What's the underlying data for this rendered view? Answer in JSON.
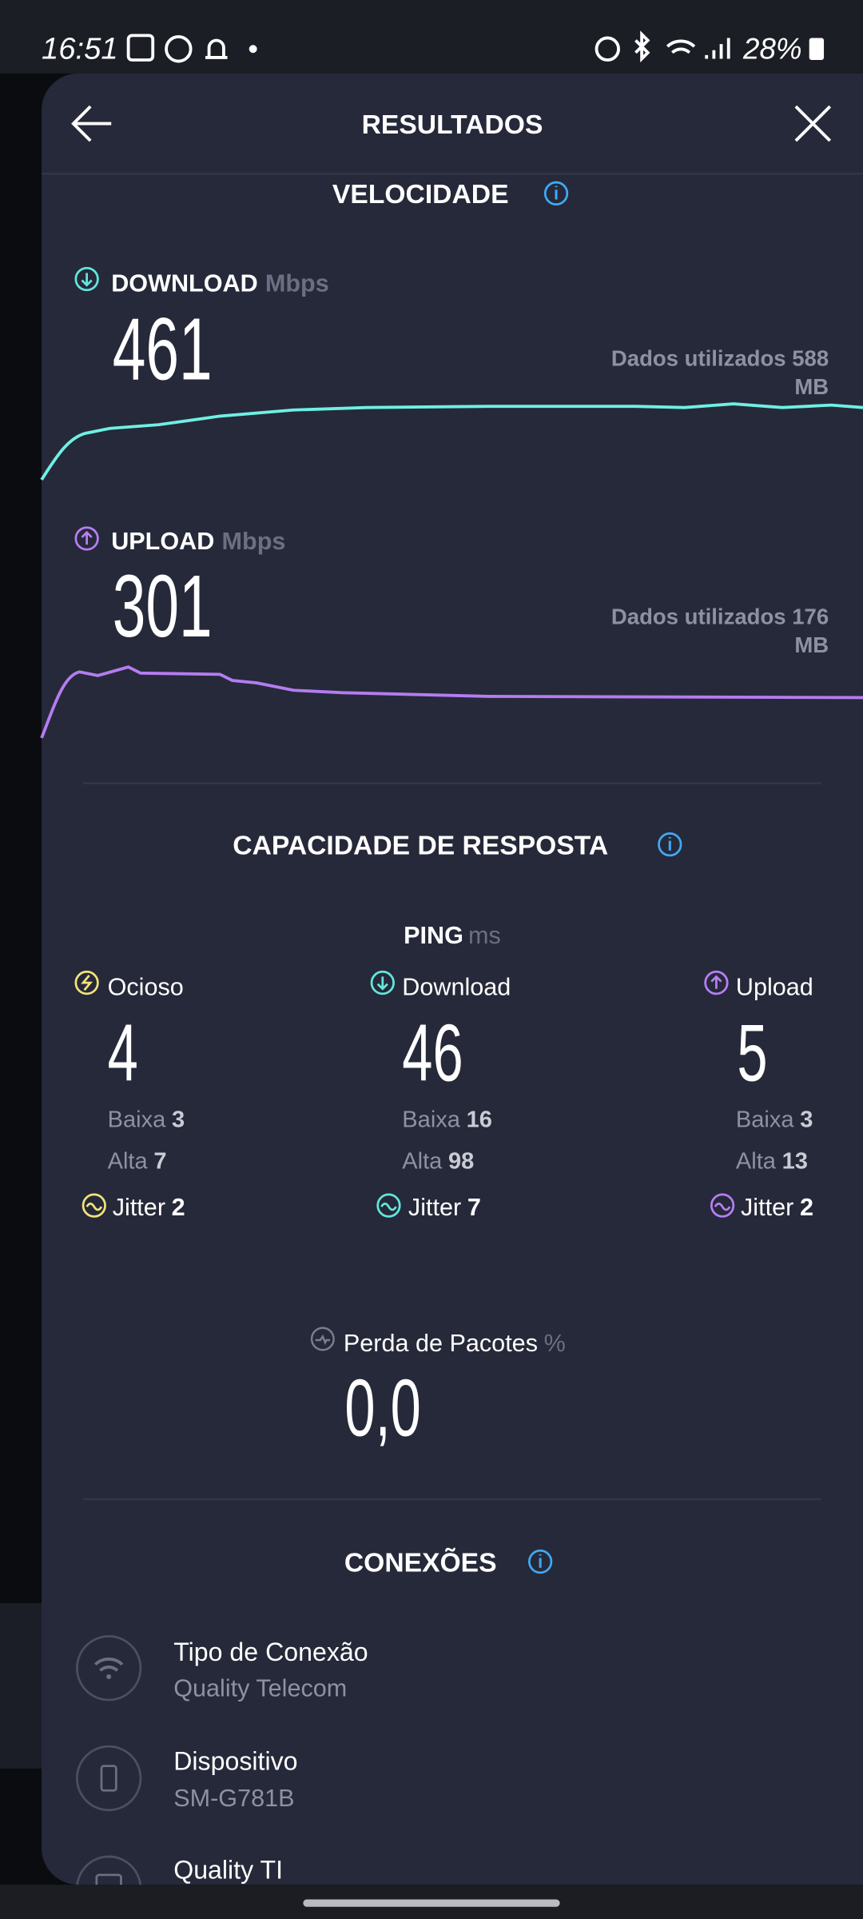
{
  "status_bar": {
    "time": "16:51",
    "battery": "28%"
  },
  "header": {
    "title": "RESULTADOS"
  },
  "speed": {
    "title": "VELOCIDADE",
    "download": {
      "label": "DOWNLOAD",
      "unit": "Mbps",
      "value": 461,
      "data_used": "Dados utilizados 588",
      "data_unit": "MB"
    },
    "upload": {
      "label": "UPLOAD",
      "unit": "Mbps",
      "value": 301,
      "data_used": "Dados utilizados 176",
      "data_unit": "MB"
    }
  },
  "responsiveness": {
    "title": "CAPACIDADE DE RESPOSTA",
    "ping_label": "PING",
    "ping_unit": "ms",
    "columns": [
      {
        "name": "Ocioso",
        "value": 4,
        "low_label": "Baixa",
        "low": 3,
        "high_label": "Alta",
        "high": 7,
        "jitter_label": "Jitter",
        "jitter": 2
      },
      {
        "name": "Download",
        "value": 46,
        "low_label": "Baixa",
        "low": 16,
        "high_label": "Alta",
        "high": 98,
        "jitter_label": "Jitter",
        "jitter": 7
      },
      {
        "name": "Upload",
        "value": 5,
        "low_label": "Baixa",
        "low": 3,
        "high_label": "Alta",
        "high": 13,
        "jitter_label": "Jitter",
        "jitter": 2
      }
    ],
    "packet_loss": {
      "label": "Perda de Pacotes",
      "unit": "%",
      "value": "0,0"
    }
  },
  "connections": {
    "title": "CONEXÕES",
    "items": [
      {
        "title": "Tipo de Conexão",
        "subtitle": "Quality Telecom"
      },
      {
        "title": "Dispositivo",
        "subtitle": "SM-G781B"
      },
      {
        "title": "Quality TI"
      }
    ]
  }
}
